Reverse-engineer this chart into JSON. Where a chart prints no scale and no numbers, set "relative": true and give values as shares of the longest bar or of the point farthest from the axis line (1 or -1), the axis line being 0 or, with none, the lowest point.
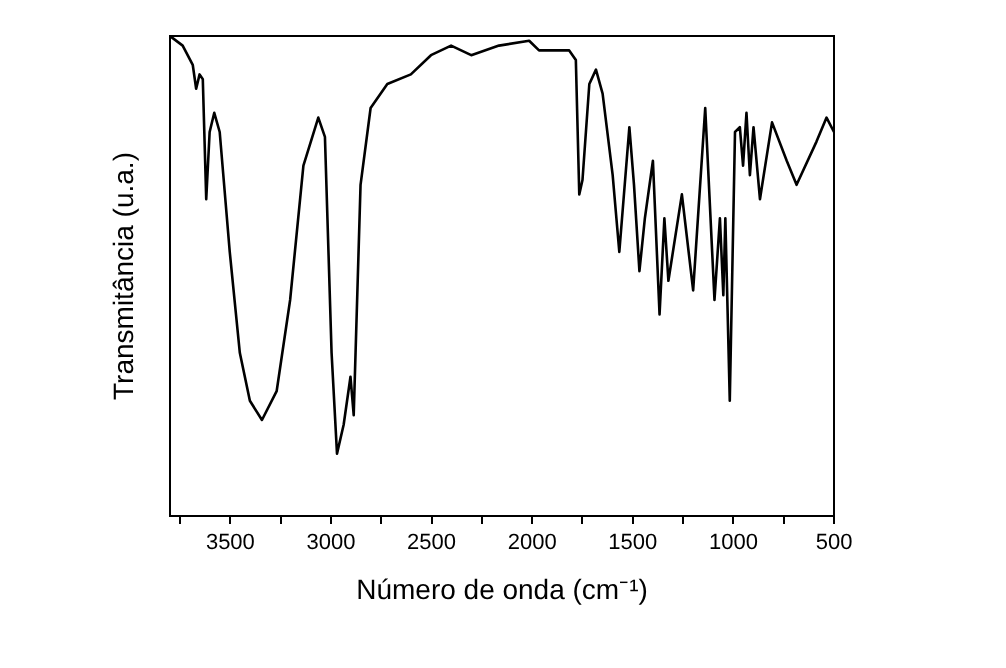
{
  "chart_data": {
    "type": "line",
    "xlabel": "Número de onda (cm⁻¹)",
    "ylabel": "Transmitância (u.a.)",
    "relative": true,
    "tick_labels": "x",
    "grid": false,
    "legend": false,
    "marker": "none",
    "line_style": "solid",
    "xlim": [
      3800,
      500
    ],
    "xticks": [
      {
        "value": 3750,
        "label": null
      },
      3500,
      {
        "value": 3250,
        "label": null
      },
      3000,
      {
        "value": 2750,
        "label": null
      },
      2500,
      {
        "value": 2250,
        "label": null
      },
      2000,
      {
        "value": 1750,
        "label": null
      },
      1500,
      {
        "value": 1250,
        "label": null
      },
      1000,
      {
        "value": 750,
        "label": null
      },
      500
    ],
    "series": [
      {
        "color": "#000000",
        "x": [
          3800,
          3737,
          3687,
          3670,
          3653,
          3637,
          3620,
          3603,
          3580,
          3553,
          3503,
          3453,
          3403,
          3343,
          3270,
          3203,
          3137,
          3063,
          3030,
          2997,
          2970,
          2937,
          2903,
          2887,
          2853,
          2803,
          2720,
          2603,
          2503,
          2403,
          2303,
          2165,
          2015,
          1966,
          1816,
          1783,
          1766,
          1750,
          1716,
          1683,
          1650,
          1600,
          1567,
          1517,
          1494,
          1467,
          1440,
          1400,
          1367,
          1343,
          1323,
          1256,
          1200,
          1140,
          1094,
          1067,
          1050,
          1040,
          1018,
          992,
          968,
          952,
          935,
          918,
          900,
          868,
          808,
          735,
          686,
          587,
          537,
          500
        ],
        "values": [
          1.0,
          0.98,
          0.94,
          0.89,
          0.92,
          0.91,
          0.66,
          0.8,
          0.84,
          0.8,
          0.55,
          0.34,
          0.24,
          0.2,
          0.26,
          0.45,
          0.73,
          0.83,
          0.79,
          0.34,
          0.13,
          0.19,
          0.29,
          0.21,
          0.69,
          0.85,
          0.9,
          0.92,
          0.96,
          0.98,
          0.96,
          0.98,
          0.99,
          0.97,
          0.97,
          0.95,
          0.67,
          0.7,
          0.9,
          0.93,
          0.88,
          0.71,
          0.55,
          0.81,
          0.69,
          0.51,
          0.62,
          0.74,
          0.42,
          0.62,
          0.49,
          0.67,
          0.47,
          0.85,
          0.45,
          0.62,
          0.46,
          0.62,
          0.24,
          0.8,
          0.81,
          0.73,
          0.84,
          0.71,
          0.81,
          0.66,
          0.82,
          0.74,
          0.69,
          0.78,
          0.83,
          0.8
        ]
      }
    ]
  }
}
